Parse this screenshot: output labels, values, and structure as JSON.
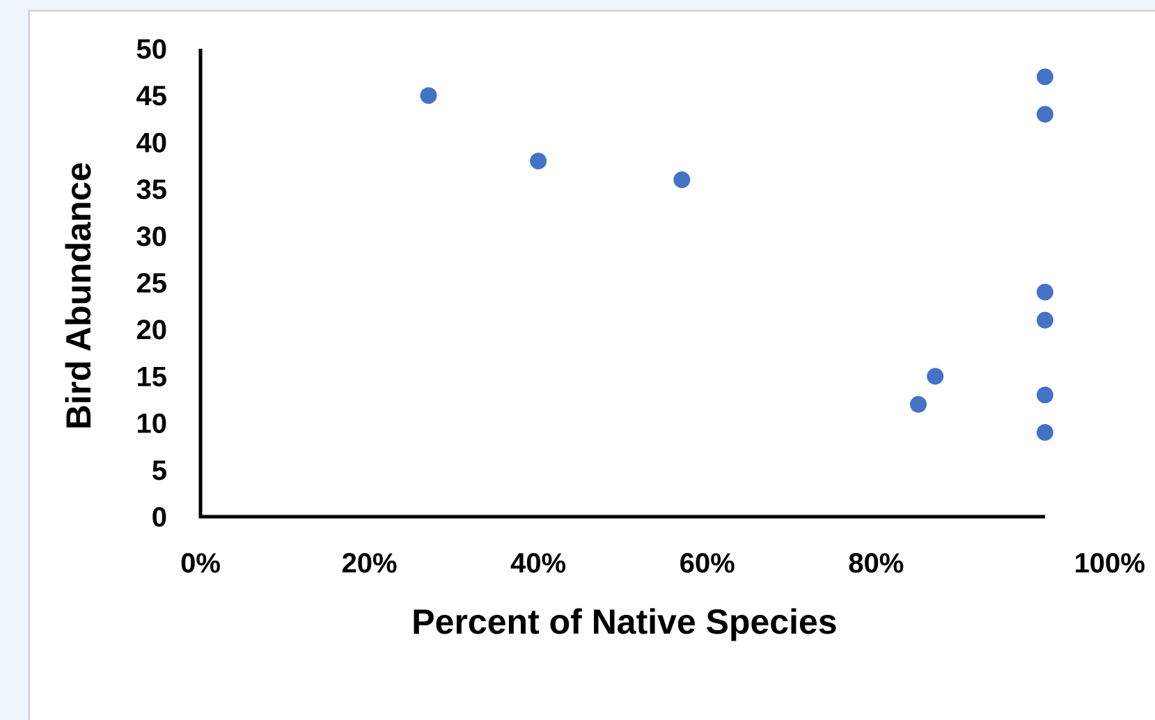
{
  "chart_data": {
    "type": "scatter",
    "xlabel": "Percent of Native Species",
    "ylabel": "Bird Abundance",
    "xlim": [
      0,
      1
    ],
    "ylim": [
      0,
      50
    ],
    "x_ticks": [
      0,
      0.2,
      0.4,
      0.6,
      0.8,
      1.0
    ],
    "x_tick_labels": [
      "0%",
      "20%",
      "40%",
      "60%",
      "80%",
      "100%"
    ],
    "y_ticks": [
      0,
      5,
      10,
      15,
      20,
      25,
      30,
      35,
      40,
      45,
      50
    ],
    "y_tick_labels": [
      "0",
      "5",
      "10",
      "15",
      "20",
      "25",
      "30",
      "35",
      "40",
      "45",
      "50"
    ],
    "grid": false,
    "legend": "none",
    "marker_color": "#4472c4",
    "points": [
      {
        "x": 0.27,
        "y": 45
      },
      {
        "x": 0.4,
        "y": 38
      },
      {
        "x": 0.57,
        "y": 36
      },
      {
        "x": 0.85,
        "y": 12
      },
      {
        "x": 0.87,
        "y": 15
      },
      {
        "x": 1.0,
        "y": 47
      },
      {
        "x": 1.0,
        "y": 43
      },
      {
        "x": 1.0,
        "y": 24
      },
      {
        "x": 1.0,
        "y": 21
      },
      {
        "x": 1.0,
        "y": 13
      },
      {
        "x": 1.0,
        "y": 9
      }
    ]
  }
}
